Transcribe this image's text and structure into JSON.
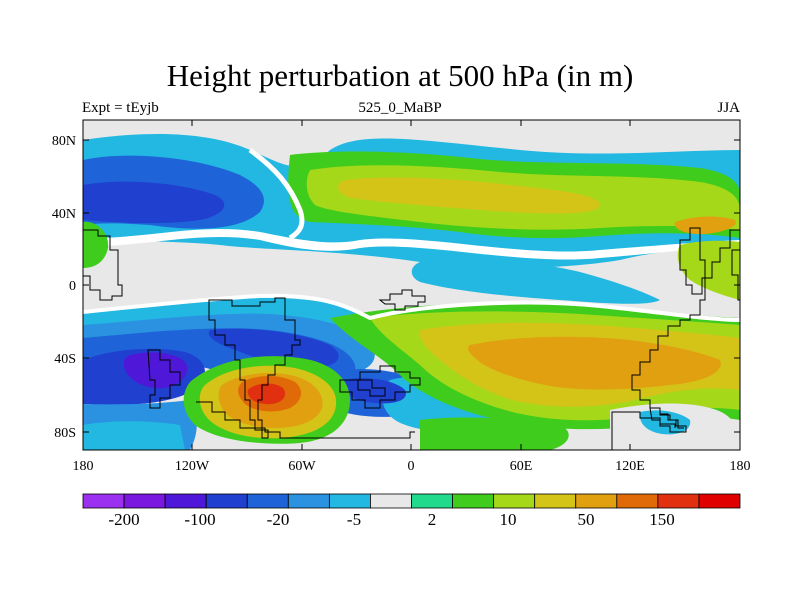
{
  "header": {
    "title": "Height perturbation at 500 hPa (in m)",
    "left": "Expt = tEyjb",
    "center": "525_0_MaBP",
    "right": "JJA"
  },
  "axes": {
    "x_ticks": [
      "180",
      "120W",
      "60W",
      "0",
      "60E",
      "120E",
      "180"
    ],
    "y_ticks": [
      "80N",
      "40N",
      "0",
      "40S",
      "80S"
    ]
  },
  "colorbar": {
    "colors": [
      "#9b30f0",
      "#7a18e0",
      "#4f18d8",
      "#2040d0",
      "#1e64d8",
      "#2a92e0",
      "#22b8e2",
      "#e8e8e8",
      "#22da8c",
      "#40cc1c",
      "#a6d81a",
      "#d4c418",
      "#e0a010",
      "#e06a08",
      "#e03010",
      "#e00000"
    ],
    "labels": [
      "-200",
      "-100",
      "-20",
      "-5",
      "2",
      "10",
      "50",
      "150"
    ]
  },
  "legend_colors": {
    "background_neutral": "#e8e8e8",
    "coast": "#000000"
  }
}
